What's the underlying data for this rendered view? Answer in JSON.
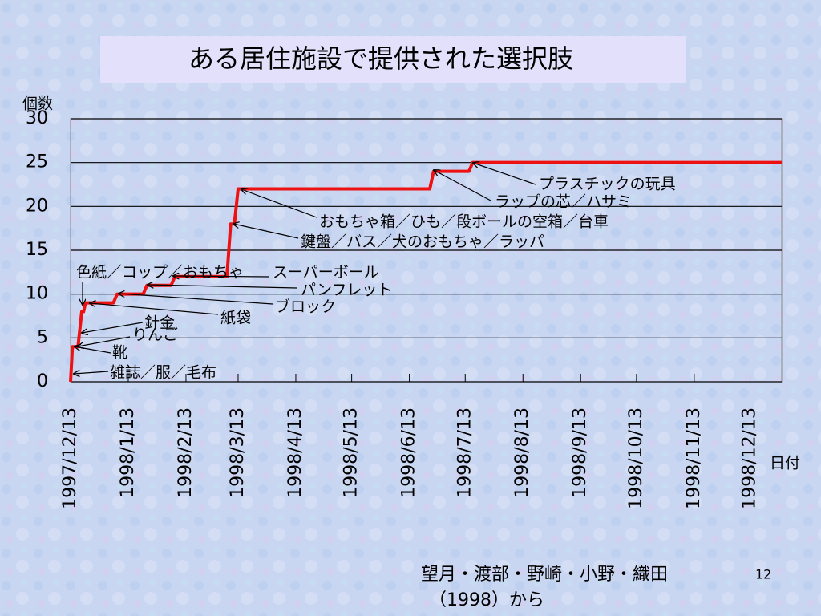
{
  "title": "ある居住施設で提供された選択肢",
  "chart_data": {
    "type": "step-line",
    "y_label": "個数",
    "x_label": "日付",
    "x": [
      "1997/12/13",
      "1997/12/14",
      "1997/12/17",
      "1997/12/19",
      "1997/12/20",
      "1997/12/21",
      "1998/1/5",
      "1998/1/7",
      "1998/1/21",
      "1998/1/23",
      "1998/2/5",
      "1998/2/7",
      "1998/3/7",
      "1998/3/9",
      "1998/3/11",
      "1998/3/13",
      "1998/6/24",
      "1998/6/26",
      "1998/7/15",
      "1998/7/17",
      "1998/12/30"
    ],
    "values": [
      0,
      4,
      4,
      8,
      8,
      9,
      9,
      10,
      10,
      11,
      11,
      12,
      12,
      18,
      18,
      22,
      22,
      24,
      24,
      25,
      25
    ],
    "color": "#ee1111",
    "xlim": [
      "1997/12/13",
      "1998/12/30"
    ],
    "xticks": [
      "1997/12/13",
      "1998/1/13",
      "1998/2/13",
      "1998/3/13",
      "1998/4/13",
      "1998/5/13",
      "1998/6/13",
      "1998/7/13",
      "1998/8/13",
      "1998/9/13",
      "1998/10/13",
      "1998/11/13",
      "1998/12/13"
    ],
    "ylim": [
      0,
      30
    ],
    "yticks": [
      0,
      5,
      10,
      15,
      20,
      25,
      30
    ],
    "grid": true,
    "annotations": [
      "プラスチックの玩具",
      "ラップの芯／ハサミ",
      "おもちゃ箱／ひも／段ボールの空箱／台車",
      "鍵盤／バス／犬のおもちゃ／ラッパ",
      "色紙／コップ／おもちゃ",
      "スーパーボール",
      "パンフレット",
      "ブロック",
      "紙袋",
      "針金",
      "りんご",
      "靴",
      "雑誌／服／毛布"
    ]
  },
  "source": {
    "authors": "望月・渡部・野崎・小野・織田",
    "year": "（1998）から",
    "page": "12"
  }
}
